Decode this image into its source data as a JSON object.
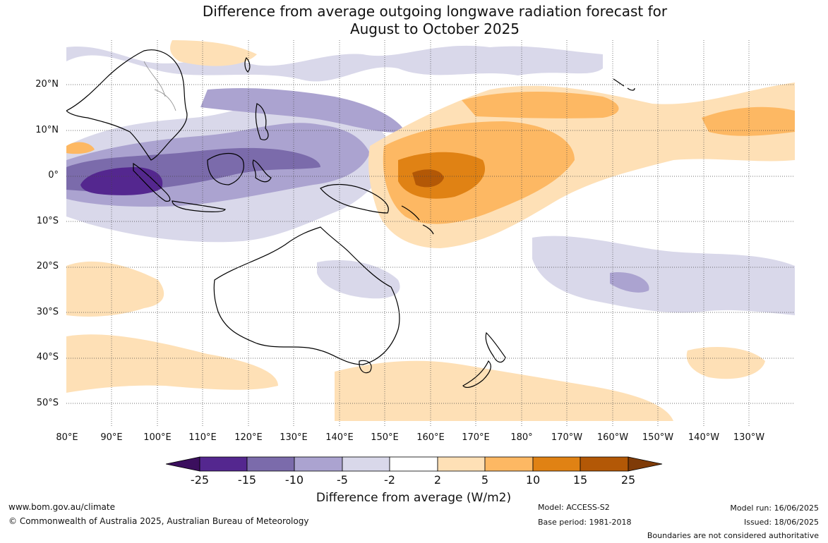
{
  "title": {
    "line1": "Difference from average outgoing longwave radiation forecast for",
    "line2": "August to October 2025"
  },
  "map": {
    "latitude_labels": [
      "20°N",
      "10°N",
      "0°",
      "10°S",
      "20°S",
      "30°S",
      "40°S",
      "50°S"
    ],
    "longitude_labels": [
      "80°E",
      "90°E",
      "100°E",
      "110°E",
      "120°E",
      "130°E",
      "140°E",
      "150°E",
      "160°E",
      "170°E",
      "180°",
      "170°W",
      "160°W",
      "150°W",
      "140°W",
      "130°W"
    ],
    "gridlines": "dotted",
    "region": "Indo-Pacific"
  },
  "colorbar": {
    "title": "Difference from average (W/m2)",
    "tick_labels": [
      "-25",
      "-15",
      "-10",
      "-5",
      "-2",
      "2",
      "5",
      "10",
      "15",
      "25"
    ],
    "colors": [
      "#3b0f5e",
      "#54278f",
      "#7b6bab",
      "#aba3d0",
      "#d9d8ea",
      "#ffffff",
      "#fee0b6",
      "#fdb863",
      "#e08214",
      "#b35806",
      "#7f3b08"
    ]
  },
  "footer": {
    "website": "www.bom.gov.au/climate",
    "copyright": "© Commonwealth of Australia 2025, Australian Bureau of Meteorology",
    "model": "Model: ACCESS-S2",
    "base_period": "Base period: 1981-2018",
    "model_run": "Model run: 16/06/2025",
    "issued": "Issued: 18/06/2025",
    "disclaimer": "Boundaries are not considered authoritative"
  }
}
